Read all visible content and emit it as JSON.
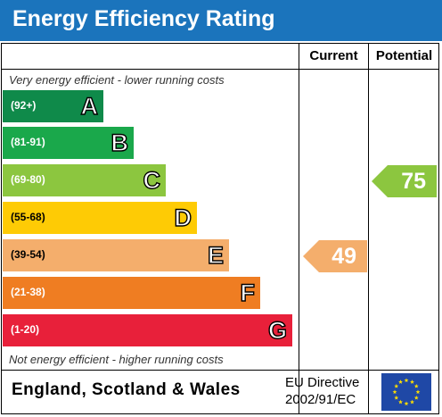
{
  "header": {
    "title": "Energy Efficiency Rating"
  },
  "columns": {
    "current": "Current",
    "potential": "Potential"
  },
  "notes": {
    "top": "Very energy efficient - lower running costs",
    "bottom": "Not energy efficient - higher running costs"
  },
  "chart_data": {
    "type": "bar",
    "title": "Energy Efficiency Rating",
    "categories": [
      "A",
      "B",
      "C",
      "D",
      "E",
      "F",
      "G"
    ],
    "ranges": [
      "(92+)",
      "(81-91)",
      "(69-80)",
      "(55-68)",
      "(39-54)",
      "(21-38)",
      "(1-20)"
    ],
    "colors": [
      "#0f8a4a",
      "#1aa84b",
      "#8cc63f",
      "#fecb05",
      "#f4ae6c",
      "#ef7d22",
      "#e8203a"
    ],
    "current": {
      "value": 49,
      "band": "E",
      "color": "#f4ae6c"
    },
    "potential": {
      "value": 75,
      "band": "C",
      "color": "#8cc63f"
    }
  },
  "footer": {
    "country": "England, Scotland & Wales",
    "directive_line1": "EU Directive",
    "directive_line2": "2002/91/EC"
  },
  "flag": {
    "icon": "eu-flag-icon",
    "background": "#1f48a6",
    "star_color": "#ffde00"
  }
}
